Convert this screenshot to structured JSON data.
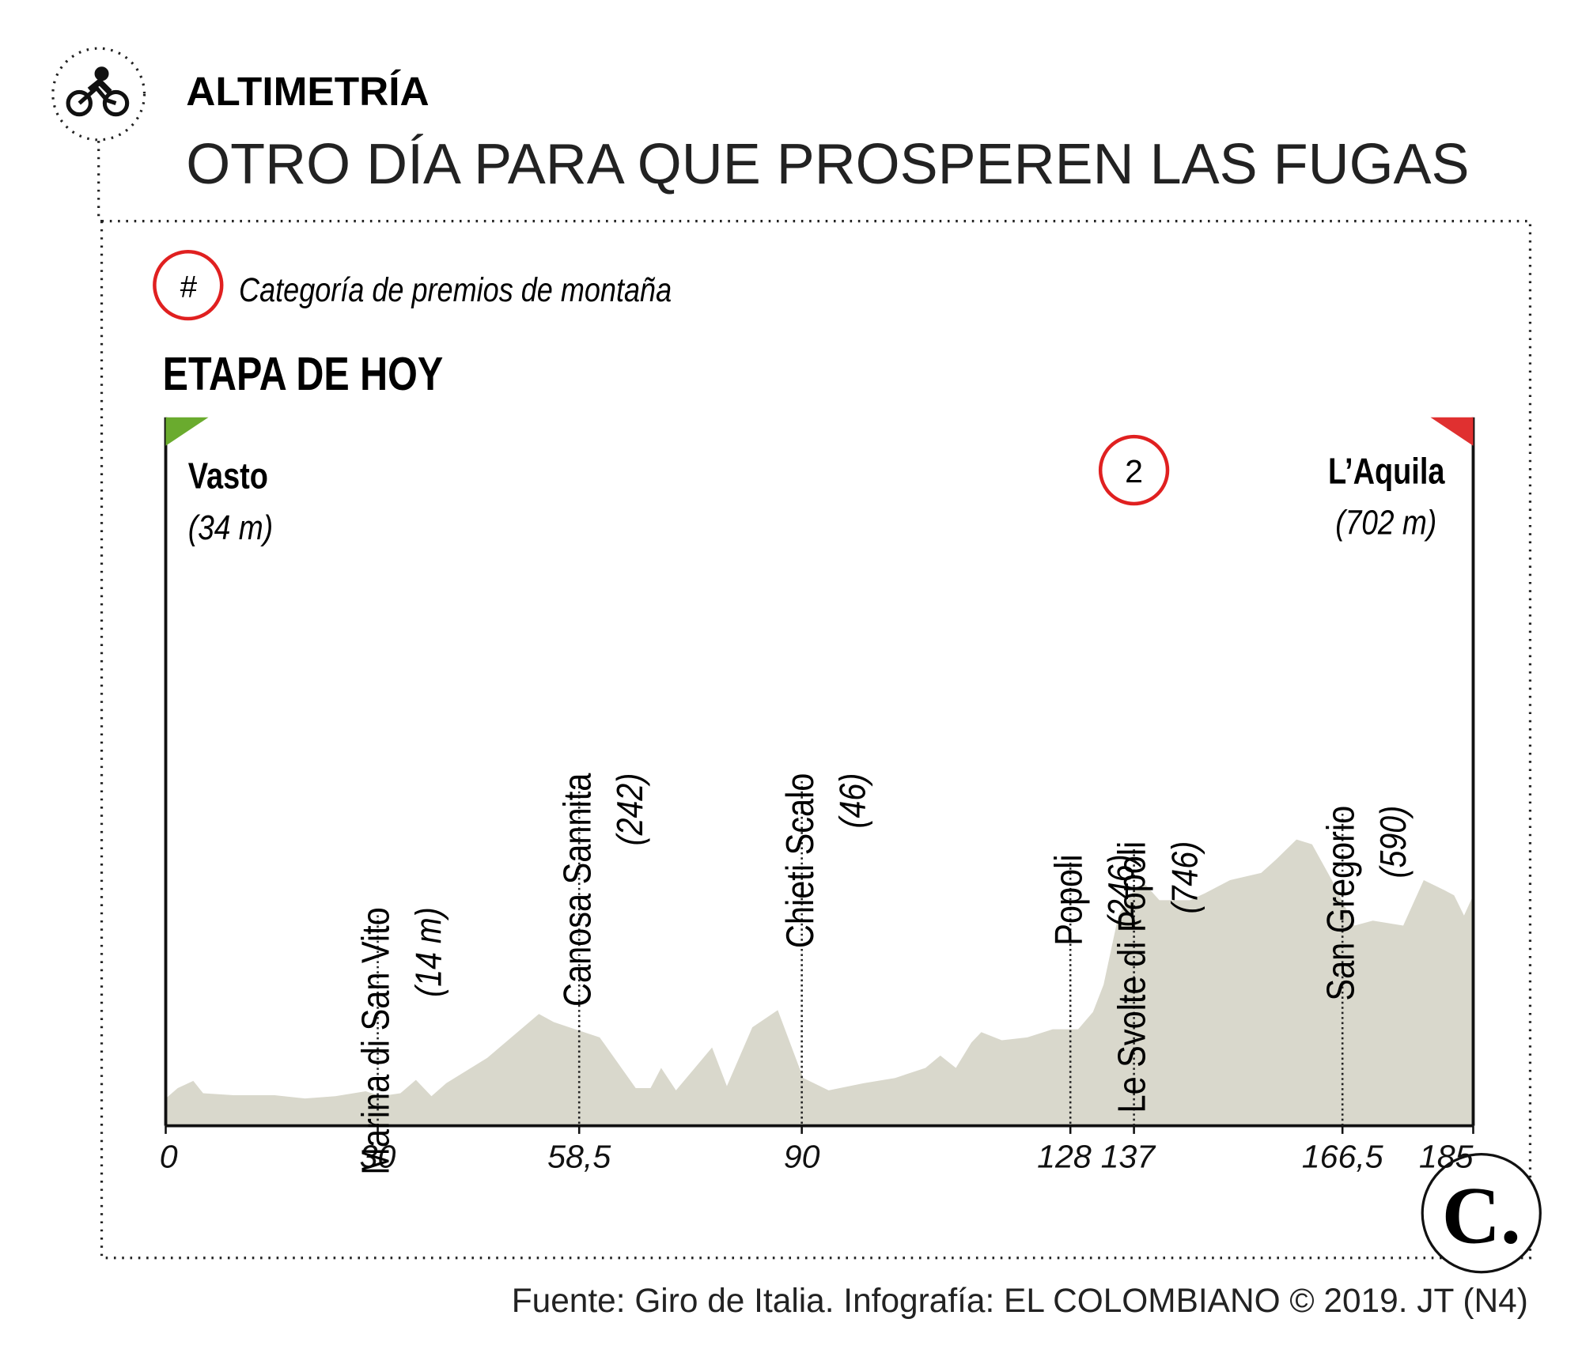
{
  "chart_data": {
    "type": "area",
    "kicker": "ALTIMETRÍA",
    "title": "OTRO DÍA PARA QUE PROSPEREN LAS FUGAS",
    "legend_symbol": "#",
    "legend_text": "Categoría de premios de montaña",
    "subtitle": "ETAPA DE HOY",
    "start": {
      "name": "Vasto",
      "elevation": "(34 m)"
    },
    "finish": {
      "name": "L’Aquila",
      "elevation": "(702 m)"
    },
    "places": [
      {
        "name": "Marina di San Vito",
        "elevation": "(14 m)"
      },
      {
        "name": "Canosa Sannita",
        "elevation": "(242)"
      },
      {
        "name": "Chieti Scalo",
        "elevation": "(46)"
      },
      {
        "name": "Popoli",
        "elevation": "(246)"
      },
      {
        "name": "Le Svolte di Popoli",
        "elevation": "(746)",
        "category": 2
      },
      {
        "name": "San Gregorio",
        "elevation": "(590)"
      }
    ],
    "x": [
      0,
      1.7,
      3.9,
      5.3,
      9.6,
      15.4,
      19.7,
      24,
      28.3,
      30.4,
      33.2,
      35.4,
      37.6,
      39.7,
      45.5,
      52.8,
      54.9,
      57.1,
      61.4,
      66.5,
      68.6,
      70.1,
      72.2,
      77.3,
      79.4,
      83,
      86.6,
      90.2,
      93.8,
      98.8,
      103.2,
      107.5,
      109.6,
      111.8,
      114,
      115.4,
      118.3,
      121.9,
      125.5,
      129.1,
      131.2,
      132.7,
      134.8,
      137,
      138.4,
      140.6,
      144.9,
      147.1,
      150.6,
      155,
      157.1,
      160,
      162.2,
      165,
      168.2,
      170.8,
      175.1,
      178,
      180.9,
      182.3,
      183.7,
      185
    ],
    "values": [
      84,
      116,
      138,
      100,
      94,
      94,
      84,
      91,
      106,
      91,
      100,
      141,
      91,
      131,
      209,
      344,
      319,
      303,
      272,
      116,
      116,
      178,
      109,
      241,
      122,
      303,
      356,
      147,
      109,
      131,
      147,
      178,
      216,
      178,
      256,
      288,
      263,
      272,
      297,
      297,
      350,
      434,
      647,
      725,
      747,
      694,
      694,
      716,
      756,
      778,
      819,
      881,
      866,
      756,
      616,
      631,
      616,
      756,
      725,
      709,
      647,
      709
    ],
    "color": "#d9d8cc",
    "xlim": [
      0,
      185
    ],
    "xticks": [
      0,
      30,
      {
        "value": 58.5,
        "label": "58,5"
      },
      90,
      128,
      137,
      {
        "value": 166.5,
        "label": "166,5"
      },
      185
    ],
    "ylim": [
      0,
      2180
    ],
    "start_flag_color": "#6aab2e",
    "finish_flag_color": "#e03030",
    "category_color": "#e02020",
    "source": "Fuente: Giro de Italia. Infografía: EL COLOMBIANO © 2019. JT (N4)",
    "logo": "C."
  }
}
